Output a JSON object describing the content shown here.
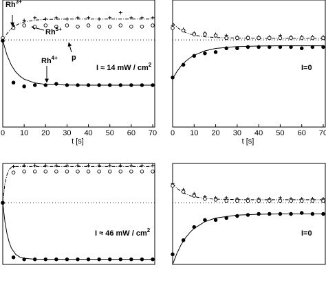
{
  "chart_data": [
    {
      "type": "scatter",
      "xlim": [
        0,
        70
      ],
      "ylim": [
        0,
        1
      ],
      "xticks": [
        0,
        10,
        20,
        30,
        40,
        50,
        60,
        70
      ],
      "xlabel": "t [s]",
      "x": [
        0,
        5,
        10,
        15,
        20,
        25,
        30,
        35,
        40,
        45,
        50,
        55,
        60,
        65,
        70
      ],
      "series": [
        {
          "marker": "plus",
          "color": "#000000",
          "values": [
            0.68,
            0.8,
            0.84,
            0.86,
            0.85,
            0.86,
            0.85,
            0.86,
            0.86,
            0.85,
            0.86,
            0.9,
            0.86,
            0.86,
            0.86
          ]
        },
        {
          "marker": "open",
          "color": "#000000",
          "values": [
            0.7,
            0.78,
            0.8,
            0.79,
            0.8,
            0.79,
            0.8,
            0.79,
            0.8,
            0.79,
            0.79,
            0.8,
            0.79,
            0.79,
            0.8
          ]
        },
        {
          "marker": "filled",
          "color": "#000000",
          "values": [
            0.68,
            0.35,
            0.32,
            0.33,
            0.33,
            0.34,
            0.33,
            0.33,
            0.33,
            0.33,
            0.33,
            0.33,
            0.33,
            0.33,
            0.33
          ]
        }
      ],
      "curve_x": [
        0,
        2,
        4,
        6,
        8,
        10,
        15,
        20,
        30,
        40,
        50,
        60,
        70
      ],
      "curves": [
        {
          "style": "dashdot",
          "values": [
            0.68,
            0.736,
            0.774,
            0.799,
            0.816,
            0.827,
            0.842,
            0.847,
            0.85,
            0.85,
            0.85,
            0.85,
            0.85
          ]
        },
        {
          "style": "solid",
          "values": [
            0.68,
            0.565,
            0.487,
            0.435,
            0.401,
            0.377,
            0.347,
            0.336,
            0.331,
            0.33,
            0.33,
            0.33,
            0.33
          ]
        }
      ],
      "reference_line": 0.686,
      "annotations": [
        {
          "text": "Rh",
          "sup": "3+"
        },
        {
          "text": "Rh",
          "sup": "5+"
        },
        {
          "text": "p"
        },
        {
          "text": "Rh",
          "sup": "4+"
        },
        {
          "text": "I ≈ 14 mW / cm",
          "sup": "2"
        }
      ]
    },
    {
      "type": "scatter",
      "xlim": [
        0,
        70
      ],
      "ylim": [
        0,
        1
      ],
      "xticks": [
        0,
        10,
        20,
        30,
        40,
        50,
        60,
        70
      ],
      "xlabel": "t [s]",
      "x": [
        0,
        5,
        10,
        15,
        20,
        25,
        30,
        35,
        40,
        45,
        50,
        55,
        60,
        65,
        70
      ],
      "series": [
        {
          "marker": "plus",
          "color": "#000000",
          "values": [
            0.8,
            0.77,
            0.74,
            0.74,
            0.73,
            0.72,
            0.71,
            0.71,
            0.71,
            0.71,
            0.72,
            0.71,
            0.71,
            0.71,
            0.71
          ]
        },
        {
          "marker": "open",
          "color": "#000000",
          "values": [
            0.78,
            0.76,
            0.73,
            0.73,
            0.72,
            0.7,
            0.7,
            0.7,
            0.7,
            0.7,
            0.7,
            0.7,
            0.7,
            0.7,
            0.7
          ]
        },
        {
          "marker": "filled",
          "color": "#000000",
          "values": [
            0.39,
            0.49,
            0.56,
            0.58,
            0.59,
            0.62,
            0.62,
            0.63,
            0.63,
            0.63,
            0.63,
            0.63,
            0.62,
            0.63,
            0.63
          ]
        }
      ],
      "curve_x": [
        0,
        2,
        4,
        6,
        8,
        10,
        15,
        20,
        30,
        40,
        50,
        60,
        70
      ],
      "curves": [
        {
          "style": "dashdot",
          "values": [
            0.82,
            0.786,
            0.762,
            0.744,
            0.732,
            0.723,
            0.71,
            0.704,
            0.701,
            0.7,
            0.7,
            0.7,
            0.7
          ]
        },
        {
          "style": "solid",
          "values": [
            0.38,
            0.437,
            0.483,
            0.517,
            0.544,
            0.565,
            0.6,
            0.619,
            0.634,
            0.638,
            0.64,
            0.64,
            0.64
          ]
        }
      ],
      "reference_line": 0.686,
      "annotations": [
        {
          "text": "I=0"
        }
      ]
    },
    {
      "type": "scatter",
      "xlim": [
        0,
        70
      ],
      "ylim": [
        0,
        1
      ],
      "x": [
        0,
        5,
        10,
        15,
        20,
        25,
        30,
        35,
        40,
        45,
        50,
        55,
        60,
        65,
        70
      ],
      "series": [
        {
          "marker": "plus",
          "color": "#000000",
          "values": [
            0.61,
            0.97,
            0.98,
            0.98,
            0.98,
            0.98,
            0.98,
            0.98,
            0.98,
            0.98,
            0.98,
            0.98,
            0.98,
            0.98,
            0.98
          ]
        },
        {
          "marker": "open",
          "color": "#000000",
          "values": [
            0.61,
            0.91,
            0.92,
            0.92,
            0.92,
            0.92,
            0.92,
            0.92,
            0.92,
            0.92,
            0.92,
            0.92,
            0.92,
            0.92,
            0.92
          ]
        },
        {
          "marker": "filled",
          "color": "#000000",
          "values": [
            0.61,
            0.07,
            0.05,
            0.05,
            0.05,
            0.05,
            0.05,
            0.05,
            0.05,
            0.05,
            0.05,
            0.05,
            0.05,
            0.05,
            0.05
          ]
        }
      ],
      "curve_x": [
        0,
        1,
        2,
        3,
        4,
        6,
        8,
        10,
        15,
        20,
        30,
        40,
        50,
        60,
        70
      ],
      "curves": [
        {
          "style": "dashdot",
          "values": [
            0.61,
            0.8,
            0.89,
            0.94,
            0.96,
            0.97,
            0.97,
            0.97,
            0.97,
            0.97,
            0.97,
            0.97,
            0.97,
            0.97,
            0.97
          ]
        },
        {
          "style": "solid",
          "values": [
            0.61,
            0.425,
            0.302,
            0.219,
            0.162,
            0.1,
            0.072,
            0.06,
            0.051,
            0.05,
            0.05,
            0.05,
            0.05,
            0.05,
            0.05
          ]
        }
      ],
      "reference_line": 0.61,
      "annotations": [
        {
          "text": "I ≈ 46 mW / cm",
          "sup": "2"
        }
      ]
    },
    {
      "type": "scatter",
      "xlim": [
        0,
        70
      ],
      "ylim": [
        0,
        1
      ],
      "x": [
        0,
        5,
        10,
        15,
        20,
        25,
        30,
        35,
        40,
        45,
        50,
        55,
        60,
        65,
        70
      ],
      "series": [
        {
          "marker": "plus",
          "color": "#000000",
          "values": [
            0.8,
            0.74,
            0.7,
            0.67,
            0.66,
            0.66,
            0.65,
            0.65,
            0.65,
            0.65,
            0.66,
            0.65,
            0.65,
            0.65,
            0.65
          ]
        },
        {
          "marker": "open",
          "color": "#000000",
          "values": [
            0.78,
            0.72,
            0.68,
            0.65,
            0.64,
            0.63,
            0.63,
            0.63,
            0.63,
            0.63,
            0.63,
            0.63,
            0.63,
            0.63,
            0.63
          ]
        },
        {
          "marker": "filled",
          "color": "#000000",
          "values": [
            0.1,
            0.24,
            0.37,
            0.44,
            0.44,
            0.46,
            0.48,
            0.49,
            0.5,
            0.5,
            0.5,
            0.5,
            0.51,
            0.5,
            0.5
          ]
        }
      ],
      "curve_x": [
        0,
        2,
        4,
        6,
        8,
        10,
        15,
        20,
        30,
        40,
        50,
        60,
        70
      ],
      "curves": [
        {
          "style": "dashdot",
          "values": [
            0.8,
            0.755,
            0.722,
            0.699,
            0.682,
            0.67,
            0.653,
            0.646,
            0.641,
            0.64,
            0.64,
            0.64,
            0.64
          ]
        },
        {
          "style": "solid",
          "values": [
            0.0,
            0.11,
            0.197,
            0.264,
            0.316,
            0.357,
            0.423,
            0.459,
            0.488,
            0.497,
            0.5,
            0.5,
            0.5
          ]
        }
      ],
      "reference_line": 0.61,
      "annotations": [
        {
          "text": "I=0"
        }
      ]
    }
  ]
}
